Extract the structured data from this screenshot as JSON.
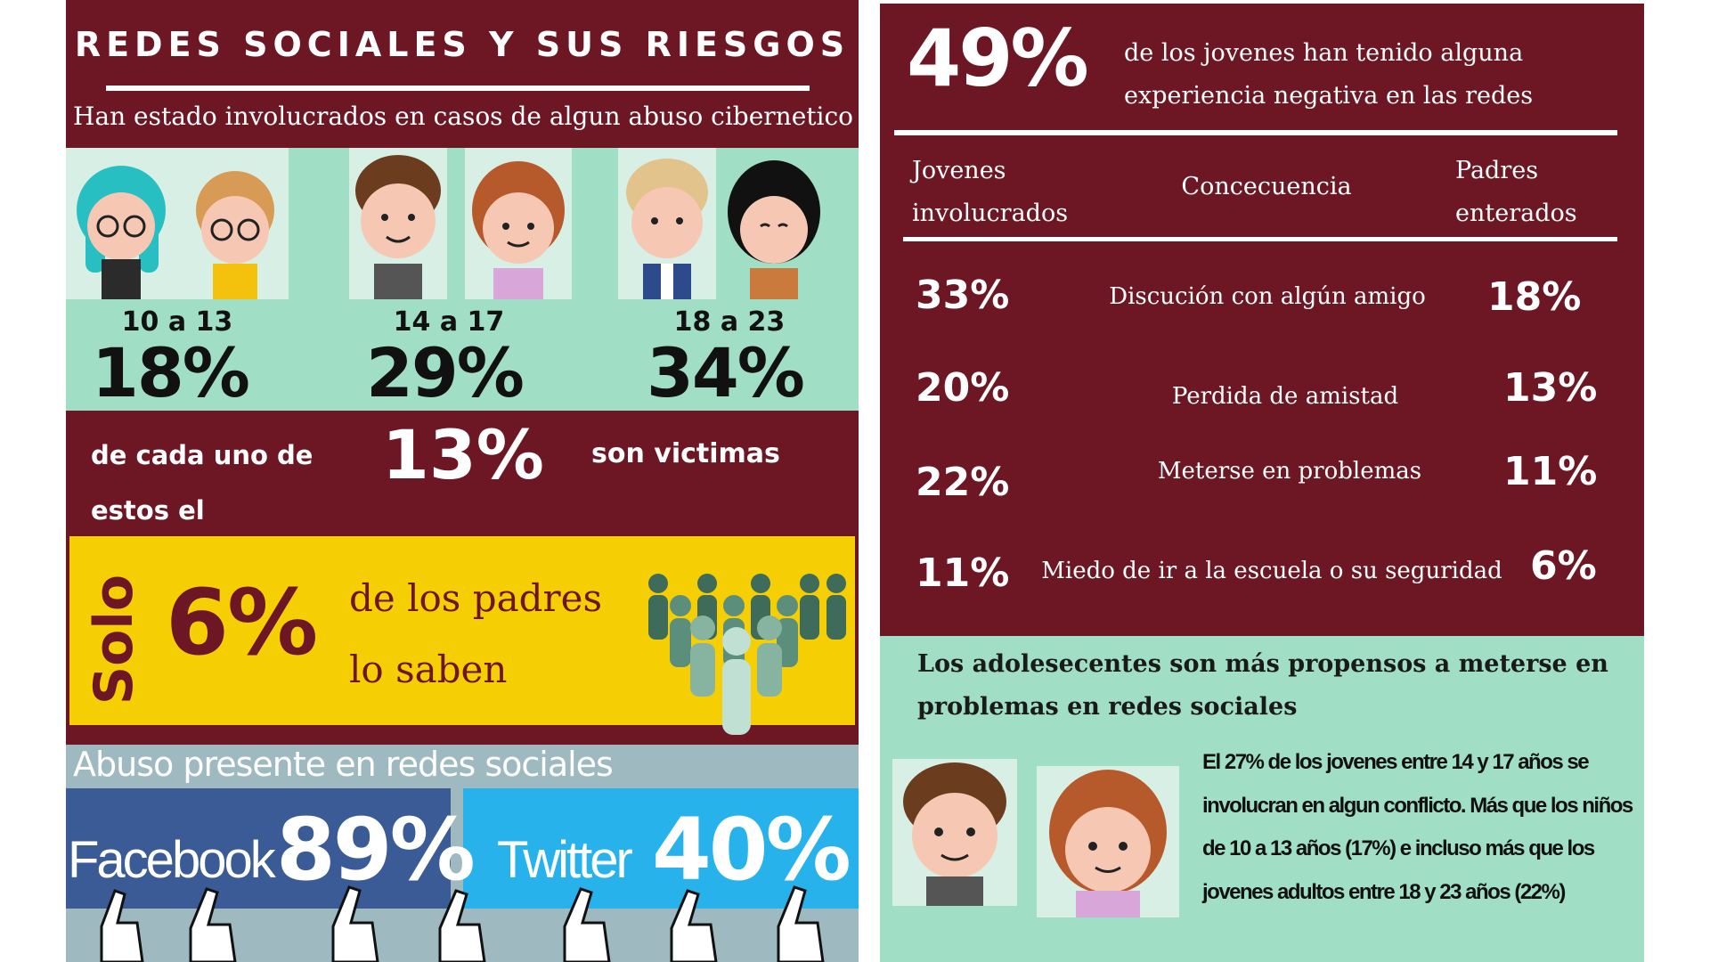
{
  "left": {
    "title": "REDES SOCIALES Y SUS RIESGOS",
    "subtitle": "Han estado involucrados en casos de algun abuso cibernetico",
    "age_groups": [
      {
        "label": "10 a 13",
        "percent": "18%"
      },
      {
        "label": "14 a 17",
        "percent": "29%"
      },
      {
        "label": "18 a 23",
        "percent": "34%"
      }
    ],
    "victims": {
      "pre": "de cada uno de estos el",
      "percent": "13%",
      "post": "son victimas"
    },
    "parents": {
      "solo": "Solo",
      "percent": "6%",
      "line1": "de los padres",
      "line2": "lo saben"
    },
    "abuse": {
      "title": "Abuso presente en redes sociales",
      "facebook": {
        "name": "Facebook",
        "percent": "89%"
      },
      "twitter": {
        "name": "Twitter",
        "percent": "40%"
      }
    }
  },
  "right": {
    "headline": {
      "percent": "49%",
      "text": "de los jovenes han tenido alguna experiencia negativa en las redes"
    },
    "table": {
      "headers": {
        "jovenes": "Jovenes involucrados",
        "consecuencia": "Concecuencia",
        "padres": "Padres enterados"
      },
      "rows": [
        {
          "jovenes": "33%",
          "consecuencia": "Discución con algún amigo",
          "padres": "18%"
        },
        {
          "jovenes": "20%",
          "consecuencia": "Perdida de amistad",
          "padres": "13%"
        },
        {
          "jovenes": "22%",
          "consecuencia": "Meterse en problemas",
          "padres": "11%"
        },
        {
          "jovenes": "11%",
          "consecuencia": "Miedo de ir a la escuela o su seguridad",
          "padres": "6%"
        }
      ]
    },
    "teens": {
      "title": "Los adolesecentes son más propensos a meterse en problemas en redes sociales",
      "body": "El 27% de los jovenes entre 14 y 17 años se involucran en algun conflicto. Más que los niños de 10 a 13 años (17%) e incluso más que los jovenes adultos entre 18 y 23 años (22%)"
    }
  },
  "colors": {
    "maroon": "#6e1724",
    "mint": "#a1dec6",
    "yellow": "#f6ce04",
    "facebook": "#3a5b95",
    "twitter": "#27b2ec"
  }
}
